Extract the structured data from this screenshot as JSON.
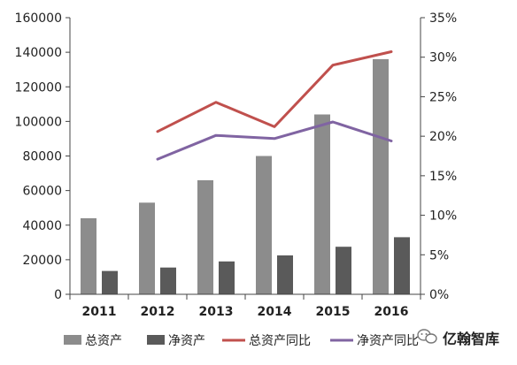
{
  "chart_data": {
    "type": "bar+line",
    "categories": [
      "2011",
      "2012",
      "2013",
      "2014",
      "2015",
      "2016"
    ],
    "bar_series": [
      {
        "name": "总资产",
        "values": [
          44000,
          53000,
          66000,
          80000,
          104000,
          136000
        ],
        "color": "#8c8c8c"
      },
      {
        "name": "净资产",
        "values": [
          13500,
          15500,
          19000,
          22500,
          27500,
          33000
        ],
        "color": "#5a5a5a"
      }
    ],
    "line_series": [
      {
        "name": "总资产同比",
        "values": [
          null,
          0.206,
          0.243,
          0.212,
          0.29,
          0.307
        ],
        "color": "#c0504d"
      },
      {
        "name": "净资产同比",
        "values": [
          null,
          0.171,
          0.201,
          0.197,
          0.218,
          0.194
        ],
        "color": "#8064a2"
      }
    ],
    "y_left": {
      "min": 0,
      "max": 160000,
      "ticks": [
        0,
        20000,
        40000,
        60000,
        80000,
        100000,
        120000,
        140000,
        160000
      ],
      "tick_labels": [
        "0",
        "20000",
        "40000",
        "60000",
        "80000",
        "100000",
        "120000",
        "140000",
        "160000"
      ]
    },
    "y_right": {
      "min": 0,
      "max": 0.35,
      "ticks": [
        0,
        0.05,
        0.1,
        0.15,
        0.2,
        0.25,
        0.3,
        0.35
      ],
      "tick_labels": [
        "0%",
        "5%",
        "10%",
        "15%",
        "20%",
        "25%",
        "30%",
        "35%"
      ]
    },
    "legend": {
      "position": "bottom"
    },
    "grid": false
  },
  "watermark": {
    "text": "亿翰智库",
    "icon": "wechat-icon"
  }
}
